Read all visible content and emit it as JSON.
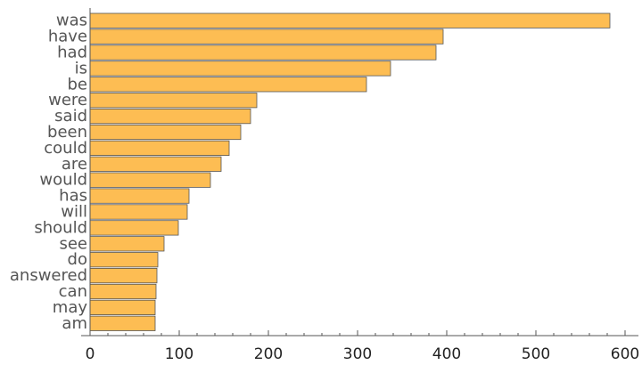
{
  "chart_data": {
    "type": "bar",
    "orientation": "horizontal",
    "categories": [
      "was",
      "have",
      "had",
      "is",
      "be",
      "were",
      "said",
      "been",
      "could",
      "are",
      "would",
      "has",
      "will",
      "should",
      "see",
      "do",
      "answered",
      "can",
      "may",
      "am"
    ],
    "values": [
      583,
      396,
      388,
      337,
      310,
      187,
      180,
      169,
      156,
      147,
      135,
      111,
      109,
      99,
      83,
      76,
      75,
      74,
      73,
      73
    ],
    "xlim": [
      0,
      600
    ],
    "xticks": [
      0,
      100,
      200,
      300,
      400,
      500,
      600
    ],
    "grid": false,
    "bar_color": "#FDBD53",
    "title": "",
    "xlabel": "",
    "ylabel": ""
  }
}
